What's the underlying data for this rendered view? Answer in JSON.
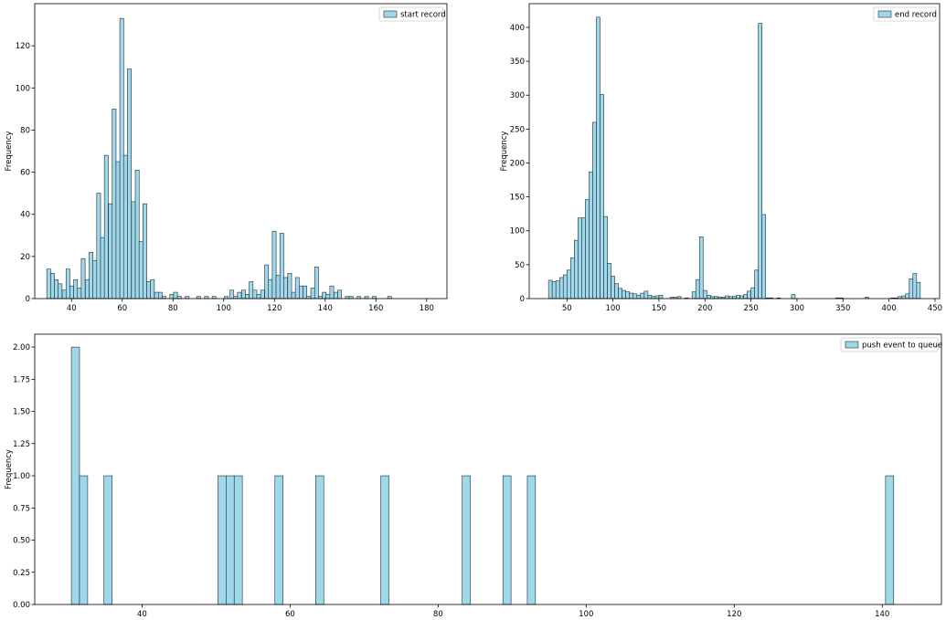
{
  "chart_data": [
    {
      "type": "bar",
      "subtype": "histogram",
      "title": "",
      "xlabel": "",
      "ylabel": "Frequency",
      "legend": [
        "start record"
      ],
      "legend_position": "top-right",
      "grid": false,
      "xlim": [
        25.5,
        188
      ],
      "ylim": [
        0,
        140
      ],
      "xticks": [
        40,
        60,
        80,
        100,
        120,
        140,
        160,
        180
      ],
      "yticks": [
        0,
        20,
        40,
        60,
        80,
        100,
        120
      ],
      "bin_width": 1.52,
      "series": [
        {
          "name": "start record",
          "color": "#9fd8ea",
          "edge_color": "#1f2d33",
          "bins": [
            [
              31.0,
              14
            ],
            [
              32.5,
              12
            ],
            [
              34.0,
              9
            ],
            [
              35.5,
              7
            ],
            [
              37.1,
              4
            ],
            [
              38.6,
              14
            ],
            [
              40.1,
              6
            ],
            [
              41.6,
              9
            ],
            [
              43.1,
              5
            ],
            [
              44.6,
              19
            ],
            [
              46.2,
              9
            ],
            [
              47.7,
              22
            ],
            [
              49.2,
              18
            ],
            [
              50.7,
              50
            ],
            [
              52.2,
              29
            ],
            [
              53.7,
              68
            ],
            [
              55.3,
              45
            ],
            [
              56.8,
              90
            ],
            [
              58.3,
              65
            ],
            [
              59.8,
              133
            ],
            [
              61.3,
              68
            ],
            [
              62.8,
              109
            ],
            [
              64.4,
              46
            ],
            [
              65.9,
              61
            ],
            [
              67.4,
              27
            ],
            [
              68.9,
              45
            ],
            [
              70.4,
              8
            ],
            [
              71.9,
              9
            ],
            [
              73.5,
              3
            ],
            [
              75.0,
              3
            ],
            [
              76.5,
              1
            ],
            [
              79.5,
              2
            ],
            [
              81.0,
              3
            ],
            [
              82.5,
              1
            ],
            [
              85.6,
              1
            ],
            [
              90.1,
              1
            ],
            [
              93.2,
              1
            ],
            [
              96.2,
              1
            ],
            [
              101.0,
              1
            ],
            [
              103.2,
              4
            ],
            [
              104.7,
              1
            ],
            [
              106.2,
              3
            ],
            [
              107.8,
              4
            ],
            [
              109.3,
              2
            ],
            [
              110.8,
              8
            ],
            [
              112.3,
              4
            ],
            [
              113.8,
              2
            ],
            [
              115.3,
              4
            ],
            [
              116.9,
              16
            ],
            [
              118.4,
              9
            ],
            [
              119.9,
              32
            ],
            [
              121.4,
              11
            ],
            [
              122.9,
              31
            ],
            [
              124.4,
              10
            ],
            [
              126.0,
              12
            ],
            [
              127.5,
              3
            ],
            [
              129.0,
              10
            ],
            [
              130.5,
              6
            ],
            [
              132.0,
              6
            ],
            [
              133.5,
              1
            ],
            [
              135.1,
              5
            ],
            [
              136.6,
              15
            ],
            [
              138.1,
              1
            ],
            [
              139.6,
              3
            ],
            [
              141.1,
              2
            ],
            [
              142.6,
              6
            ],
            [
              144.2,
              3
            ],
            [
              145.7,
              4
            ],
            [
              148.7,
              1
            ],
            [
              150.2,
              1
            ],
            [
              153.3,
              1
            ],
            [
              156.3,
              1
            ],
            [
              159.3,
              1
            ],
            [
              165.4,
              1
            ]
          ]
        }
      ]
    },
    {
      "type": "bar",
      "subtype": "histogram",
      "title": "",
      "xlabel": "",
      "ylabel": "Frequency",
      "legend": [
        "end record"
      ],
      "legend_position": "top-right",
      "grid": false,
      "xlim": [
        9,
        455
      ],
      "ylim": [
        0,
        435
      ],
      "xticks": [
        50,
        100,
        150,
        200,
        250,
        300,
        350,
        400,
        450
      ],
      "yticks": [
        0,
        50,
        100,
        150,
        200,
        250,
        300,
        350,
        400
      ],
      "bin_width": 4.0,
      "series": [
        {
          "name": "end record",
          "color": "#9fd8ea",
          "edge_color": "#1f2d33",
          "bins": [
            [
              32,
              27
            ],
            [
              36,
              25
            ],
            [
              40,
              26
            ],
            [
              44,
              31
            ],
            [
              48,
              35
            ],
            [
              52,
              42
            ],
            [
              56,
              60
            ],
            [
              60,
              86
            ],
            [
              64,
              119
            ],
            [
              68,
              119
            ],
            [
              72,
              146
            ],
            [
              76,
              187
            ],
            [
              80,
              260
            ],
            [
              84,
              415
            ],
            [
              88,
              301
            ],
            [
              92,
              121
            ],
            [
              96,
              52
            ],
            [
              100,
              33
            ],
            [
              104,
              22
            ],
            [
              108,
              15
            ],
            [
              112,
              12
            ],
            [
              116,
              10
            ],
            [
              120,
              8
            ],
            [
              124,
              7
            ],
            [
              128,
              5
            ],
            [
              132,
              8
            ],
            [
              136,
              11
            ],
            [
              140,
              5
            ],
            [
              144,
              3
            ],
            [
              148,
              4
            ],
            [
              152,
              5
            ],
            [
              156,
              0
            ],
            [
              164,
              2
            ],
            [
              168,
              2
            ],
            [
              172,
              3
            ],
            [
              180,
              1
            ],
            [
              188,
              10
            ],
            [
              192,
              28
            ],
            [
              196,
              91
            ],
            [
              200,
              12
            ],
            [
              204,
              5
            ],
            [
              208,
              3
            ],
            [
              212,
              3
            ],
            [
              216,
              2
            ],
            [
              220,
              2
            ],
            [
              224,
              4
            ],
            [
              228,
              3
            ],
            [
              232,
              3
            ],
            [
              236,
              5
            ],
            [
              240,
              4
            ],
            [
              244,
              6
            ],
            [
              248,
              11
            ],
            [
              252,
              16
            ],
            [
              256,
              42
            ],
            [
              260,
              406
            ],
            [
              264,
              124
            ],
            [
              268,
              1
            ],
            [
              272,
              1
            ],
            [
              280,
              1
            ],
            [
              296,
              6
            ],
            [
              344,
              1
            ],
            [
              348,
              1
            ],
            [
              376,
              2
            ],
            [
              404,
              1
            ],
            [
              408,
              1
            ],
            [
              412,
              3
            ],
            [
              416,
              4
            ],
            [
              420,
              7
            ],
            [
              424,
              29
            ],
            [
              428,
              37
            ],
            [
              432,
              24
            ]
          ]
        }
      ]
    },
    {
      "type": "bar",
      "subtype": "histogram",
      "title": "",
      "xlabel": "",
      "ylabel": "Frequency",
      "legend": [
        "push event to queue"
      ],
      "legend_position": "top-right",
      "grid": false,
      "xlim": [
        25.5,
        148
      ],
      "ylim": [
        0,
        2.1
      ],
      "xticks": [
        40,
        60,
        80,
        100,
        120,
        140
      ],
      "yticks": [
        "0.00",
        "0.25",
        "0.50",
        "0.75",
        "1.00",
        "1.25",
        "1.50",
        "1.75",
        "2.00"
      ],
      "bin_width": 1.1,
      "series": [
        {
          "name": "push event to queue",
          "color": "#9fd8ea",
          "edge_color": "#1f2d33",
          "bins": [
            [
              31.0,
              2
            ],
            [
              32.1,
              1
            ],
            [
              35.4,
              1
            ],
            [
              50.8,
              1
            ],
            [
              51.9,
              1
            ],
            [
              53.0,
              1
            ],
            [
              58.5,
              1
            ],
            [
              64.0,
              1
            ],
            [
              72.8,
              1
            ],
            [
              83.8,
              1
            ],
            [
              89.3,
              1
            ],
            [
              92.6,
              1
            ],
            [
              141.0,
              1
            ]
          ]
        }
      ]
    }
  ]
}
